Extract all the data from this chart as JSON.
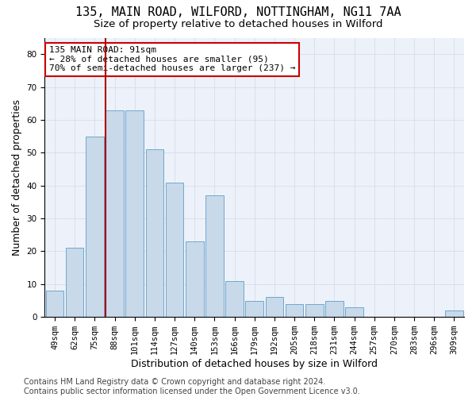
{
  "title1": "135, MAIN ROAD, WILFORD, NOTTINGHAM, NG11 7AA",
  "title2": "Size of property relative to detached houses in Wilford",
  "xlabel": "Distribution of detached houses by size in Wilford",
  "ylabel": "Number of detached properties",
  "categories": [
    "49sqm",
    "62sqm",
    "75sqm",
    "88sqm",
    "101sqm",
    "114sqm",
    "127sqm",
    "140sqm",
    "153sqm",
    "166sqm",
    "179sqm",
    "192sqm",
    "205sqm",
    "218sqm",
    "231sqm",
    "244sqm",
    "257sqm",
    "270sqm",
    "283sqm",
    "296sqm",
    "309sqm"
  ],
  "values": [
    8,
    21,
    55,
    63,
    63,
    51,
    41,
    23,
    37,
    11,
    5,
    6,
    4,
    4,
    5,
    3,
    0,
    0,
    0,
    0,
    2
  ],
  "bar_color": "#c8d9ea",
  "bar_edgecolor": "#6fa8cc",
  "highlight_index": 3,
  "highlight_color": "#aa0000",
  "annotation_text": "135 MAIN ROAD: 91sqm\n← 28% of detached houses are smaller (95)\n70% of semi-detached houses are larger (237) →",
  "annotation_box_color": "#ffffff",
  "annotation_box_edgecolor": "#cc0000",
  "ylim": [
    0,
    85
  ],
  "yticks": [
    0,
    10,
    20,
    30,
    40,
    50,
    60,
    70,
    80
  ],
  "grid_color": "#d8e0ec",
  "bg_color": "#edf2fa",
  "footer": "Contains HM Land Registry data © Crown copyright and database right 2024.\nContains public sector information licensed under the Open Government Licence v3.0.",
  "title1_fontsize": 11,
  "title2_fontsize": 9.5,
  "xlabel_fontsize": 9,
  "ylabel_fontsize": 9,
  "tick_fontsize": 7.5,
  "annotation_fontsize": 8,
  "footer_fontsize": 7
}
